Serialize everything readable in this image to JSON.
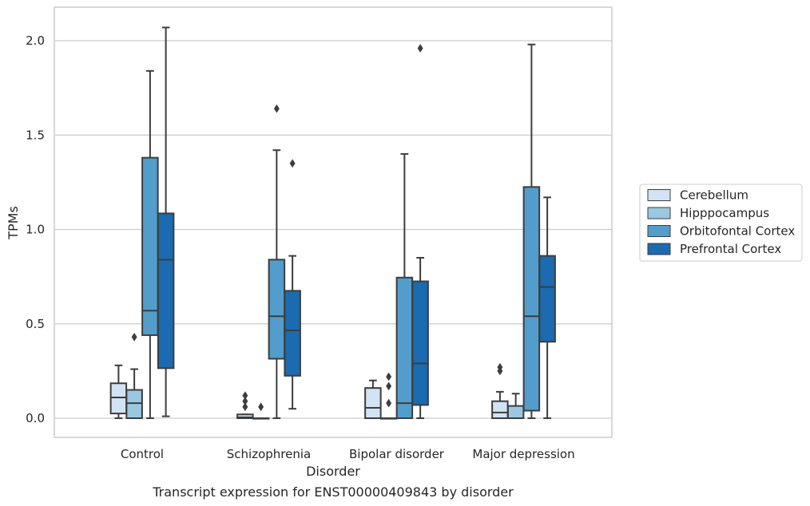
{
  "caption": "Transcript expression for ENST00000409843 by disorder",
  "chart_data": {
    "type": "box",
    "xlabel": "Disorder",
    "ylabel": "TPMs",
    "ylim": [
      -0.1,
      2.18
    ],
    "y_ticks": [
      "0.0",
      "0.5",
      "1.0",
      "1.5",
      "2.0"
    ],
    "y_tick_values": [
      0.0,
      0.5,
      1.0,
      1.5,
      2.0
    ],
    "grid": "horizontal",
    "legend_position": "right",
    "categories": [
      "Control",
      "Schizophrenia",
      "Bipolar disorder",
      "Major depression"
    ],
    "series": [
      {
        "name": "Cerebellum",
        "color": "#d2e3f3",
        "boxes": [
          {
            "whisker_low": 0.0,
            "q1": 0.025,
            "median": 0.11,
            "q3": 0.185,
            "whisker_high": 0.28,
            "outliers": []
          },
          {
            "whisker_low": 0.0,
            "q1": 0.0,
            "median": 0.005,
            "q3": 0.02,
            "whisker_high": 0.02,
            "outliers": [
              0.06,
              0.09,
              0.12
            ]
          },
          {
            "whisker_low": 0.0,
            "q1": 0.0,
            "median": 0.055,
            "q3": 0.16,
            "whisker_high": 0.2,
            "outliers": []
          },
          {
            "whisker_low": 0.0,
            "q1": 0.0,
            "median": 0.03,
            "q3": 0.09,
            "whisker_high": 0.14,
            "outliers": [
              0.25,
              0.27
            ]
          }
        ]
      },
      {
        "name": "Hipppocampus",
        "color": "#9ac8e0",
        "boxes": [
          {
            "whisker_low": 0.0,
            "q1": 0.0,
            "median": 0.08,
            "q3": 0.15,
            "whisker_high": 0.26,
            "outliers": [
              0.43
            ]
          },
          {
            "whisker_low": 0.0,
            "q1": 0.0,
            "median": 0.0,
            "q3": 0.0,
            "whisker_high": 0.0,
            "outliers": [
              0.06
            ]
          },
          {
            "whisker_low": 0.0,
            "q1": 0.0,
            "median": 0.0,
            "q3": 0.0,
            "whisker_high": 0.0,
            "outliers": [
              0.08,
              0.17,
              0.22
            ]
          },
          {
            "whisker_low": 0.0,
            "q1": 0.0,
            "median": 0.0,
            "q3": 0.065,
            "whisker_high": 0.13,
            "outliers": []
          }
        ]
      },
      {
        "name": "Orbitofontal Cortex",
        "color": "#529dcc",
        "boxes": [
          {
            "whisker_low": 0.0,
            "q1": 0.44,
            "median": 0.57,
            "q3": 1.38,
            "whisker_high": 1.84,
            "outliers": []
          },
          {
            "whisker_low": 0.0,
            "q1": 0.315,
            "median": 0.54,
            "q3": 0.84,
            "whisker_high": 1.42,
            "outliers": [
              1.64
            ]
          },
          {
            "whisker_low": 0.0,
            "q1": 0.0,
            "median": 0.08,
            "q3": 0.745,
            "whisker_high": 1.4,
            "outliers": []
          },
          {
            "whisker_low": 0.0,
            "q1": 0.04,
            "median": 0.54,
            "q3": 1.225,
            "whisker_high": 1.98,
            "outliers": []
          }
        ]
      },
      {
        "name": "Prefrontal Cortex",
        "color": "#1c6aaf",
        "boxes": [
          {
            "whisker_low": 0.01,
            "q1": 0.265,
            "median": 0.84,
            "q3": 1.085,
            "whisker_high": 2.07,
            "outliers": []
          },
          {
            "whisker_low": 0.05,
            "q1": 0.225,
            "median": 0.465,
            "q3": 0.675,
            "whisker_high": 0.86,
            "outliers": [
              1.35
            ]
          },
          {
            "whisker_low": 0.0,
            "q1": 0.07,
            "median": 0.29,
            "q3": 0.725,
            "whisker_high": 0.85,
            "outliers": [
              1.96
            ]
          },
          {
            "whisker_low": 0.0,
            "q1": 0.405,
            "median": 0.695,
            "q3": 0.86,
            "whisker_high": 1.17,
            "outliers": []
          }
        ]
      }
    ]
  }
}
